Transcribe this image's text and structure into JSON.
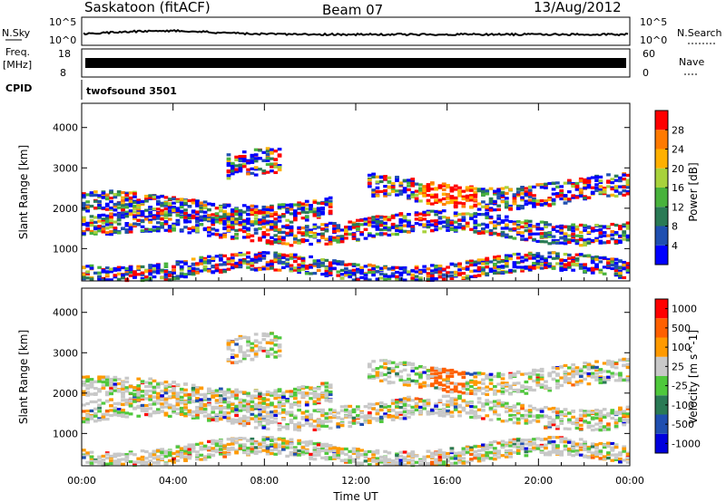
{
  "header": {
    "title": "Saskatoon (fitACF)",
    "beam": "Beam 07",
    "date": "13/Aug/2012"
  },
  "strip": {
    "nsky_label": "N.Sky",
    "nsky_top": "10^5",
    "nsky_bottom": "10^0",
    "nsearch_label": "N.Search",
    "nsearch_top": "10^5",
    "nsearch_bottom": "10^0",
    "freq_label_1": "Freq.",
    "freq_label_2": "[MHz]",
    "freq_top": "18",
    "freq_bottom": "8",
    "nave_label": "Nave",
    "nave_top": "60",
    "nave_bottom": "0",
    "cpid_label": "CPID",
    "cpid_value": "twofsound 3501"
  },
  "chart_data": [
    {
      "type": "heatmap",
      "name": "power-panel",
      "ylabel": "Slant Range [km]",
      "ylim": [
        200,
        4600
      ],
      "yticks": [
        1000,
        2000,
        3000,
        4000
      ],
      "xlabel": "Time UT",
      "xticks": [
        "00:00",
        "04:00",
        "08:00",
        "12:00",
        "16:00",
        "20:00",
        "00:00"
      ],
      "colorbar": {
        "label": "Power [dB]",
        "ticks": [
          "4",
          "8",
          "12",
          "16",
          "20",
          "24",
          "28"
        ],
        "colors": [
          "#0000ff",
          "#1f4fb0",
          "#2a7a55",
          "#48b23c",
          "#a8d23c",
          "#ffb000",
          "#ff7a00",
          "#ff0000"
        ]
      }
    },
    {
      "type": "heatmap",
      "name": "velocity-panel",
      "ylabel": "Slant Range [km]",
      "ylim": [
        200,
        4600
      ],
      "yticks": [
        1000,
        2000,
        3000,
        4000
      ],
      "xlabel": "Time UT",
      "xticks": [
        "00:00",
        "04:00",
        "08:00",
        "12:00",
        "16:00",
        "20:00",
        "00:00"
      ],
      "colorbar": {
        "label": "Velocity [m s^-1]",
        "ticks": [
          "1000",
          "500",
          "100",
          "25",
          "-25",
          "-100",
          "-500",
          "-1000"
        ],
        "colors": [
          "#0000dd",
          "#1f4fb0",
          "#2a7a55",
          "#4fc83c",
          "#c8c8c8",
          "#ff9a00",
          "#ff6000",
          "#ff0000"
        ]
      }
    }
  ]
}
